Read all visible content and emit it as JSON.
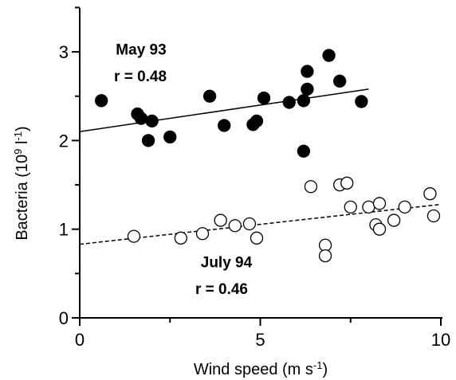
{
  "chart_data": {
    "type": "scatter",
    "xlabel": "Wind speed (m s",
    "xlabel_sup": "-1",
    "xlabel_end": ")",
    "ylabel": "Bacteria (10",
    "ylabel_sup1": "9",
    "ylabel_mid": " l",
    "ylabel_sup2": "-1",
    "ylabel_end": ")",
    "xlim": [
      0,
      10
    ],
    "ylim": [
      0,
      3.5
    ],
    "x_ticks": [
      "0",
      "5",
      "10"
    ],
    "y_ticks": [
      "0",
      "1",
      "2",
      "3"
    ],
    "grid": false,
    "series": [
      {
        "marker": "filled-circle",
        "x": [
          0.6,
          1.6,
          1.7,
          1.9,
          2.0,
          2.5,
          3.6,
          4.0,
          4.8,
          4.9,
          5.1,
          5.8,
          6.2,
          6.2,
          6.3,
          6.3,
          6.9,
          7.2,
          7.8
        ],
        "y": [
          2.45,
          2.3,
          2.25,
          2.0,
          2.22,
          2.04,
          2.5,
          2.17,
          2.18,
          2.22,
          2.48,
          2.43,
          1.88,
          2.45,
          2.78,
          2.58,
          2.96,
          2.67,
          2.44
        ],
        "fit": {
          "x": [
            0,
            8
          ],
          "y": [
            2.1,
            2.58
          ],
          "style": "solid"
        }
      },
      {
        "marker": "open-circle",
        "x": [
          1.5,
          2.8,
          3.4,
          3.9,
          4.3,
          4.7,
          4.9,
          6.4,
          7.2,
          7.4,
          7.5,
          8.0,
          8.2,
          8.3,
          8.3,
          8.7,
          9.0,
          9.7,
          9.8,
          6.8,
          6.8
        ],
        "y": [
          0.92,
          0.9,
          0.95,
          1.1,
          1.04,
          1.06,
          0.9,
          1.48,
          1.5,
          1.52,
          1.25,
          1.25,
          1.05,
          1.0,
          1.29,
          1.1,
          1.25,
          1.4,
          1.15,
          0.82,
          0.7
        ],
        "fit": {
          "x": [
            0,
            10
          ],
          "y": [
            0.83,
            1.28
          ],
          "style": "dashed"
        }
      }
    ],
    "annotations": [
      {
        "text": "May 93",
        "x": 1.0,
        "y": 2.97
      },
      {
        "text": "r = 0.48",
        "x": 0.95,
        "y": 2.67
      },
      {
        "text": "July 94",
        "x": 3.35,
        "y": 0.57
      },
      {
        "text": "r = 0.46",
        "x": 3.2,
        "y": 0.27
      }
    ]
  }
}
